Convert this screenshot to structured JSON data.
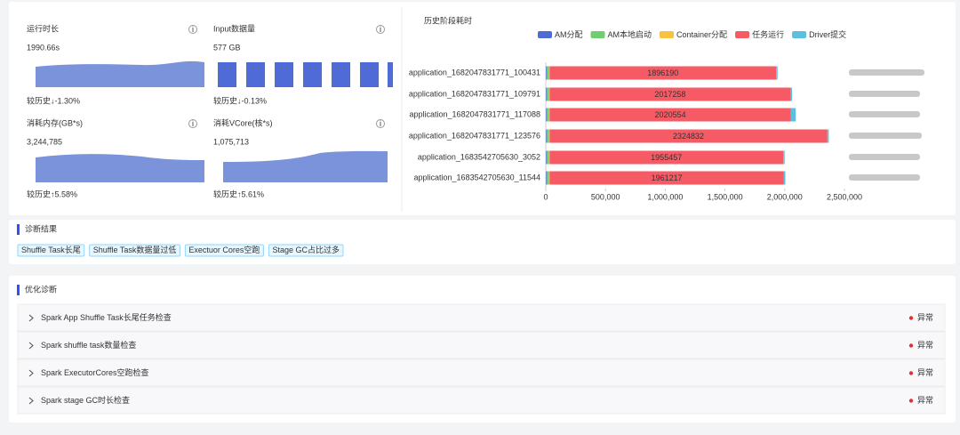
{
  "metrics": [
    {
      "label": "运行时长",
      "value": "1990.66s",
      "compare": "较历史↓-1.30%",
      "trend": "down"
    },
    {
      "label": "Input数据量",
      "value": "577 GB",
      "compare": "较历史↓-0.13%",
      "trend": "down"
    },
    {
      "label": "消耗内存(GB*s)",
      "value": "3,244,785",
      "compare": "较历史↑5.58%",
      "trend": "up"
    },
    {
      "label": "消耗VCore(核*s)",
      "value": "1,075,713",
      "compare": "较历史↑5.61%",
      "trend": "up"
    }
  ],
  "chart_data": {
    "type": "bar",
    "orientation": "horizontal",
    "stacked": true,
    "title": "历史阶段耗时",
    "legend": "top",
    "categories": [
      "application_1682047831771_100431",
      "application_1682047831771_109791",
      "application_1682047831771_117088",
      "application_1682047831771_123576",
      "application_1683542705630_3052",
      "application_1683542705630_11544"
    ],
    "series": [
      {
        "name": "AM分配",
        "color": "#4e6bd6",
        "values": [
          6000,
          6000,
          6000,
          6000,
          6000,
          6000
        ]
      },
      {
        "name": "AM本地启动",
        "color": "#6fcf6f",
        "values": [
          22000,
          22000,
          22000,
          22000,
          22000,
          22000
        ]
      },
      {
        "name": "Container分配",
        "color": "#f5c342",
        "values": [
          4000,
          4000,
          4000,
          4000,
          4000,
          4000
        ]
      },
      {
        "name": "任务运行",
        "color": "#f65a65",
        "values": [
          1896190,
          2017258,
          2020554,
          2324832,
          1955457,
          1961217
        ],
        "show_labels": true
      },
      {
        "name": "Driver提交",
        "color": "#5bc0de",
        "values": [
          12000,
          12000,
          40000,
          12000,
          12000,
          12000
        ]
      }
    ],
    "xlim": [
      0,
      2500000
    ],
    "xticks": [
      0,
      {
        "value": 500000,
        "label": "500,000"
      },
      {
        "value": 1000000,
        "label": "1,000,000"
      },
      {
        "value": 1500000,
        "label": "1,500,000"
      },
      {
        "value": 2000000,
        "label": "2,000,000"
      },
      {
        "value": 2500000,
        "label": "2,500,000"
      }
    ]
  },
  "diagnosis": {
    "title": "诊断结果",
    "tags": [
      "Shuffle Task长尾",
      "Shuffle Task数据量过低",
      "Exectuor Cores空跑",
      "Stage GC占比过多"
    ]
  },
  "optimization": {
    "title": "优化诊断",
    "items": [
      {
        "label": "Spark App Shuffle Task长尾任务检查",
        "status": "异常"
      },
      {
        "label": "Spark shuffle task数量检查",
        "status": "异常"
      },
      {
        "label": "Spark ExecutorCores空跑检查",
        "status": "异常"
      },
      {
        "label": "Spark stage GC时长检查",
        "status": "异常"
      }
    ]
  }
}
